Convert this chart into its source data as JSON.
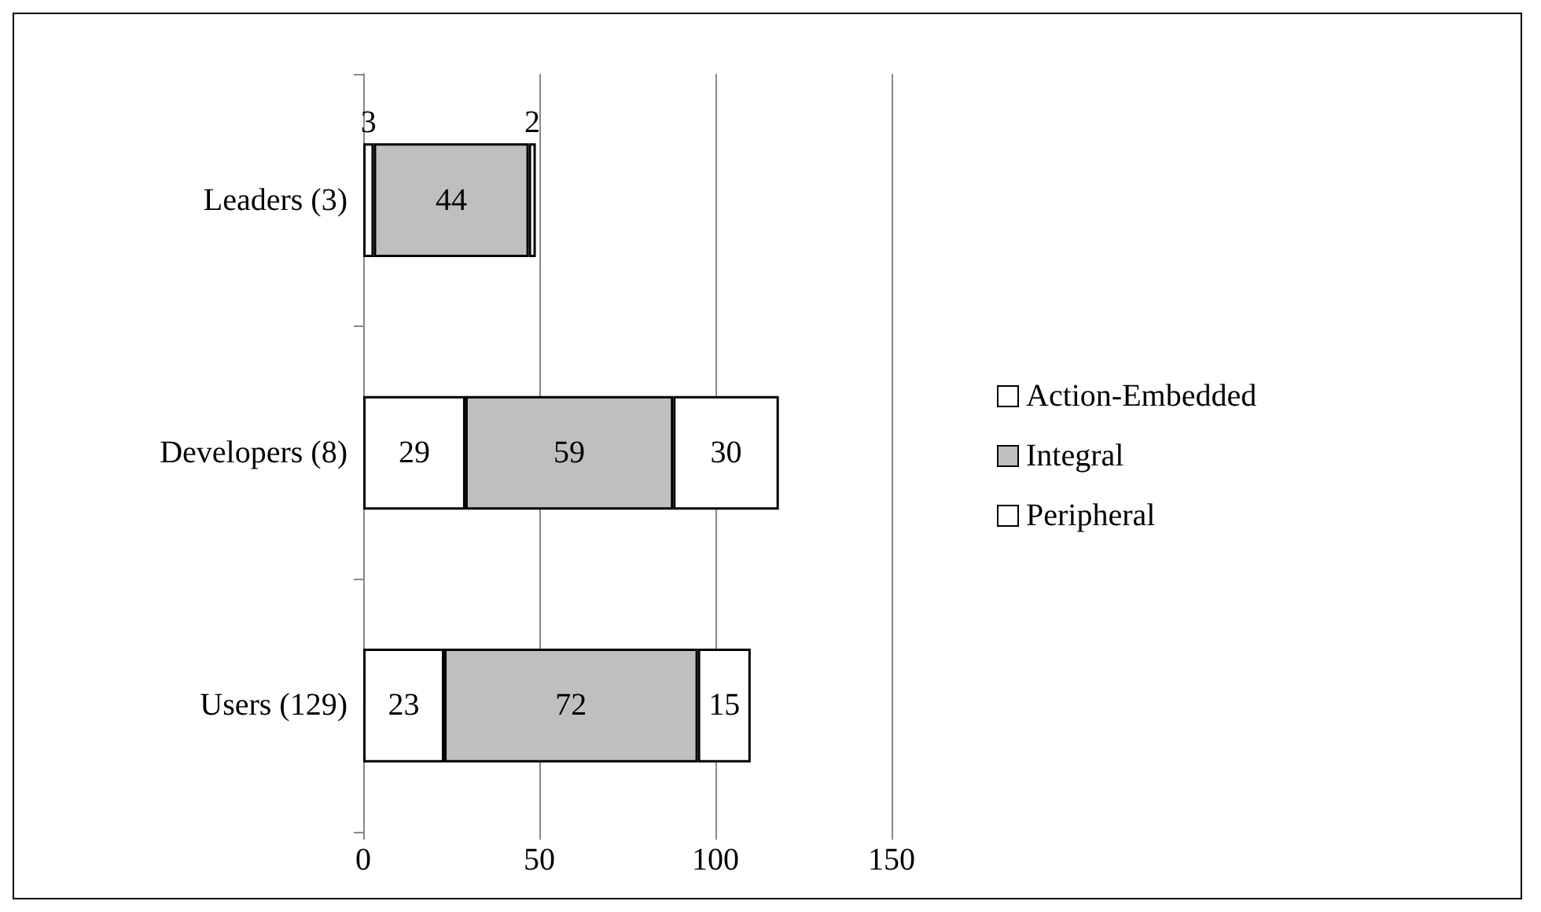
{
  "chart_data": {
    "type": "bar",
    "orientation": "horizontal",
    "stacked": true,
    "categories": [
      "Leaders (3)",
      "Developers (8)",
      "Users (129)"
    ],
    "series": [
      {
        "name": "Action-Embedded",
        "color": "#ffffff",
        "values": [
          3,
          29,
          23
        ]
      },
      {
        "name": "Integral",
        "color": "#bfbfbf",
        "values": [
          44,
          59,
          72
        ]
      },
      {
        "name": "Peripheral",
        "color": "#ffffff",
        "values": [
          2,
          30,
          15
        ]
      }
    ],
    "xlim": [
      0,
      150
    ],
    "xticks": [
      0,
      50,
      100,
      150
    ],
    "grid": "x",
    "legend": "right",
    "data_labels": true
  }
}
